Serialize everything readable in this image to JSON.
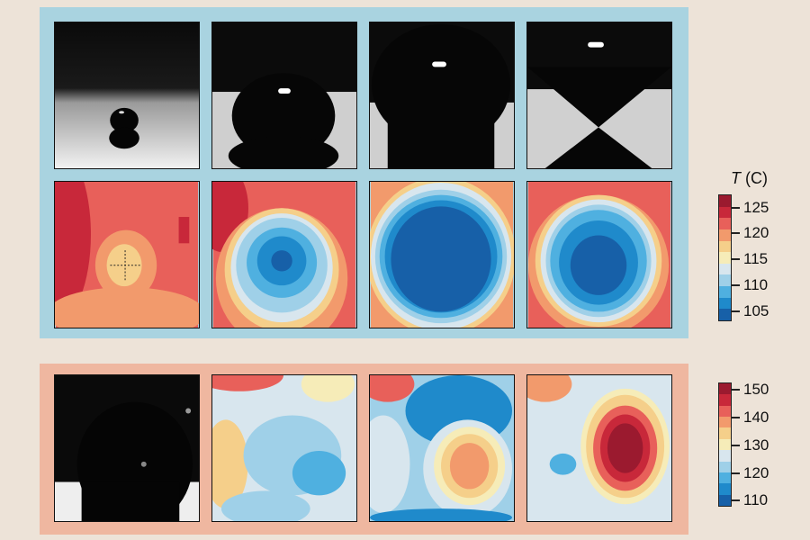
{
  "colorbar_top": {
    "title_var": "T",
    "title_unit": "(C)",
    "ticks": [
      "125",
      "120",
      "115",
      "110",
      "105"
    ]
  },
  "colorbar_bottom": {
    "ticks": [
      "150",
      "140",
      "130",
      "120",
      "110"
    ]
  },
  "palette": [
    "#9b1a2f",
    "#c8283a",
    "#e8605a",
    "#f29a6c",
    "#f5cf8a",
    "#f6ecb8",
    "#d8e6ee",
    "#9fd0e8",
    "#4fb0e0",
    "#1f8acb",
    "#1760a8"
  ],
  "panel_colors": {
    "top": "#a9d3e0",
    "bottom": "#efb7a0",
    "background": "#ede3d8"
  }
}
